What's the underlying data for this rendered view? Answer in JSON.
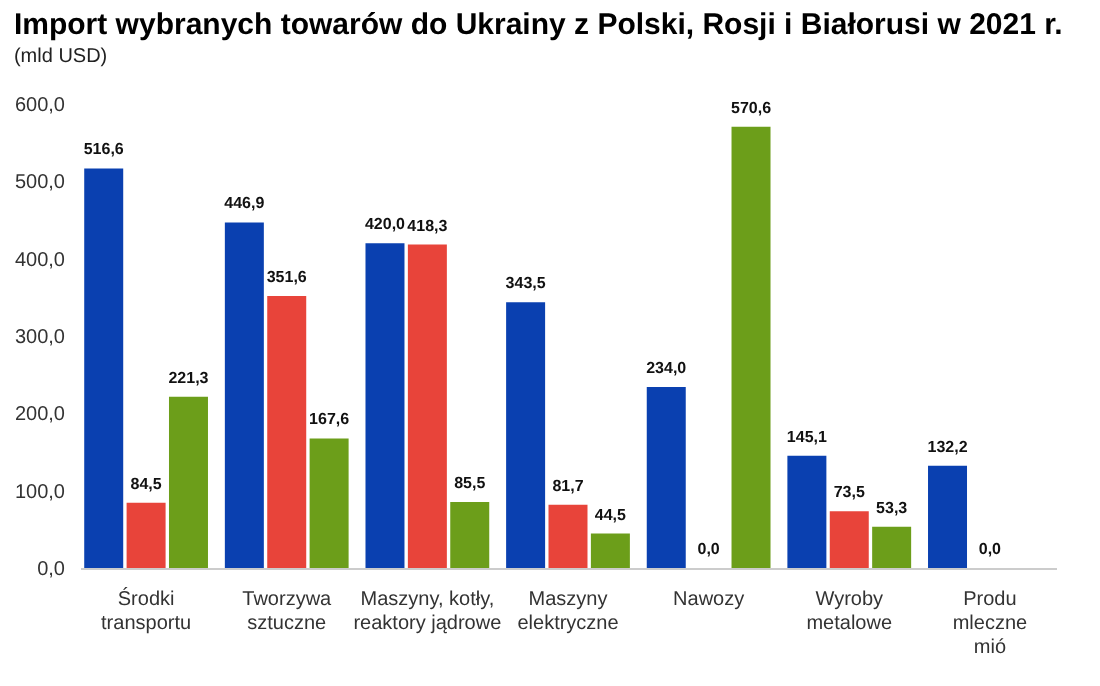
{
  "chart_data": {
    "type": "bar",
    "title": "Import wybranych towarów do Ukrainy z Polski, Rosji i Białorusi w 2021 r.",
    "subtitle": "(mld USD)",
    "categories": [
      "Środki\ntransportu",
      "Tworzywa\nsztuczne",
      "Maszyny, kotły,\nreaktory jądrowe",
      "Maszyny\nelektryczne",
      "Nawozy",
      "Wyroby\nmetalowe",
      "Produ\nmleczne\nmió"
    ],
    "series": [
      {
        "color": "#0a40b0",
        "values": [
          516.6,
          446.9,
          420.0,
          343.5,
          234.0,
          145.1,
          132.2
        ],
        "value_labels": [
          "516,6",
          "446,9",
          "420,0",
          "343,5",
          "234,0",
          "145,1",
          "132,2"
        ]
      },
      {
        "color": "#e8443a",
        "values": [
          84.5,
          351.6,
          418.3,
          81.7,
          0.0,
          73.5,
          0.0
        ],
        "value_labels": [
          "84,5",
          "351,6",
          "418,3",
          "81,7",
          "0,0",
          "73,5",
          "0,0"
        ]
      },
      {
        "color": "#6c9e1a",
        "values": [
          221.3,
          167.6,
          85.5,
          44.5,
          570.6,
          53.3,
          null
        ],
        "value_labels": [
          "221,3",
          "167,6",
          "85,5",
          "44,5",
          "570,6",
          "53,3",
          null
        ]
      }
    ],
    "ylim": [
      0,
      600
    ],
    "yticks": [
      {
        "value": 0,
        "label": "0,0"
      },
      {
        "value": 100,
        "label": "100,0"
      },
      {
        "value": 200,
        "label": "200,0"
      },
      {
        "value": 300,
        "label": "300,0"
      },
      {
        "value": 400,
        "label": "400,0"
      },
      {
        "value": 500,
        "label": "500,0"
      },
      {
        "value": 600,
        "label": "600,0"
      }
    ],
    "grid": false,
    "legend": false
  }
}
